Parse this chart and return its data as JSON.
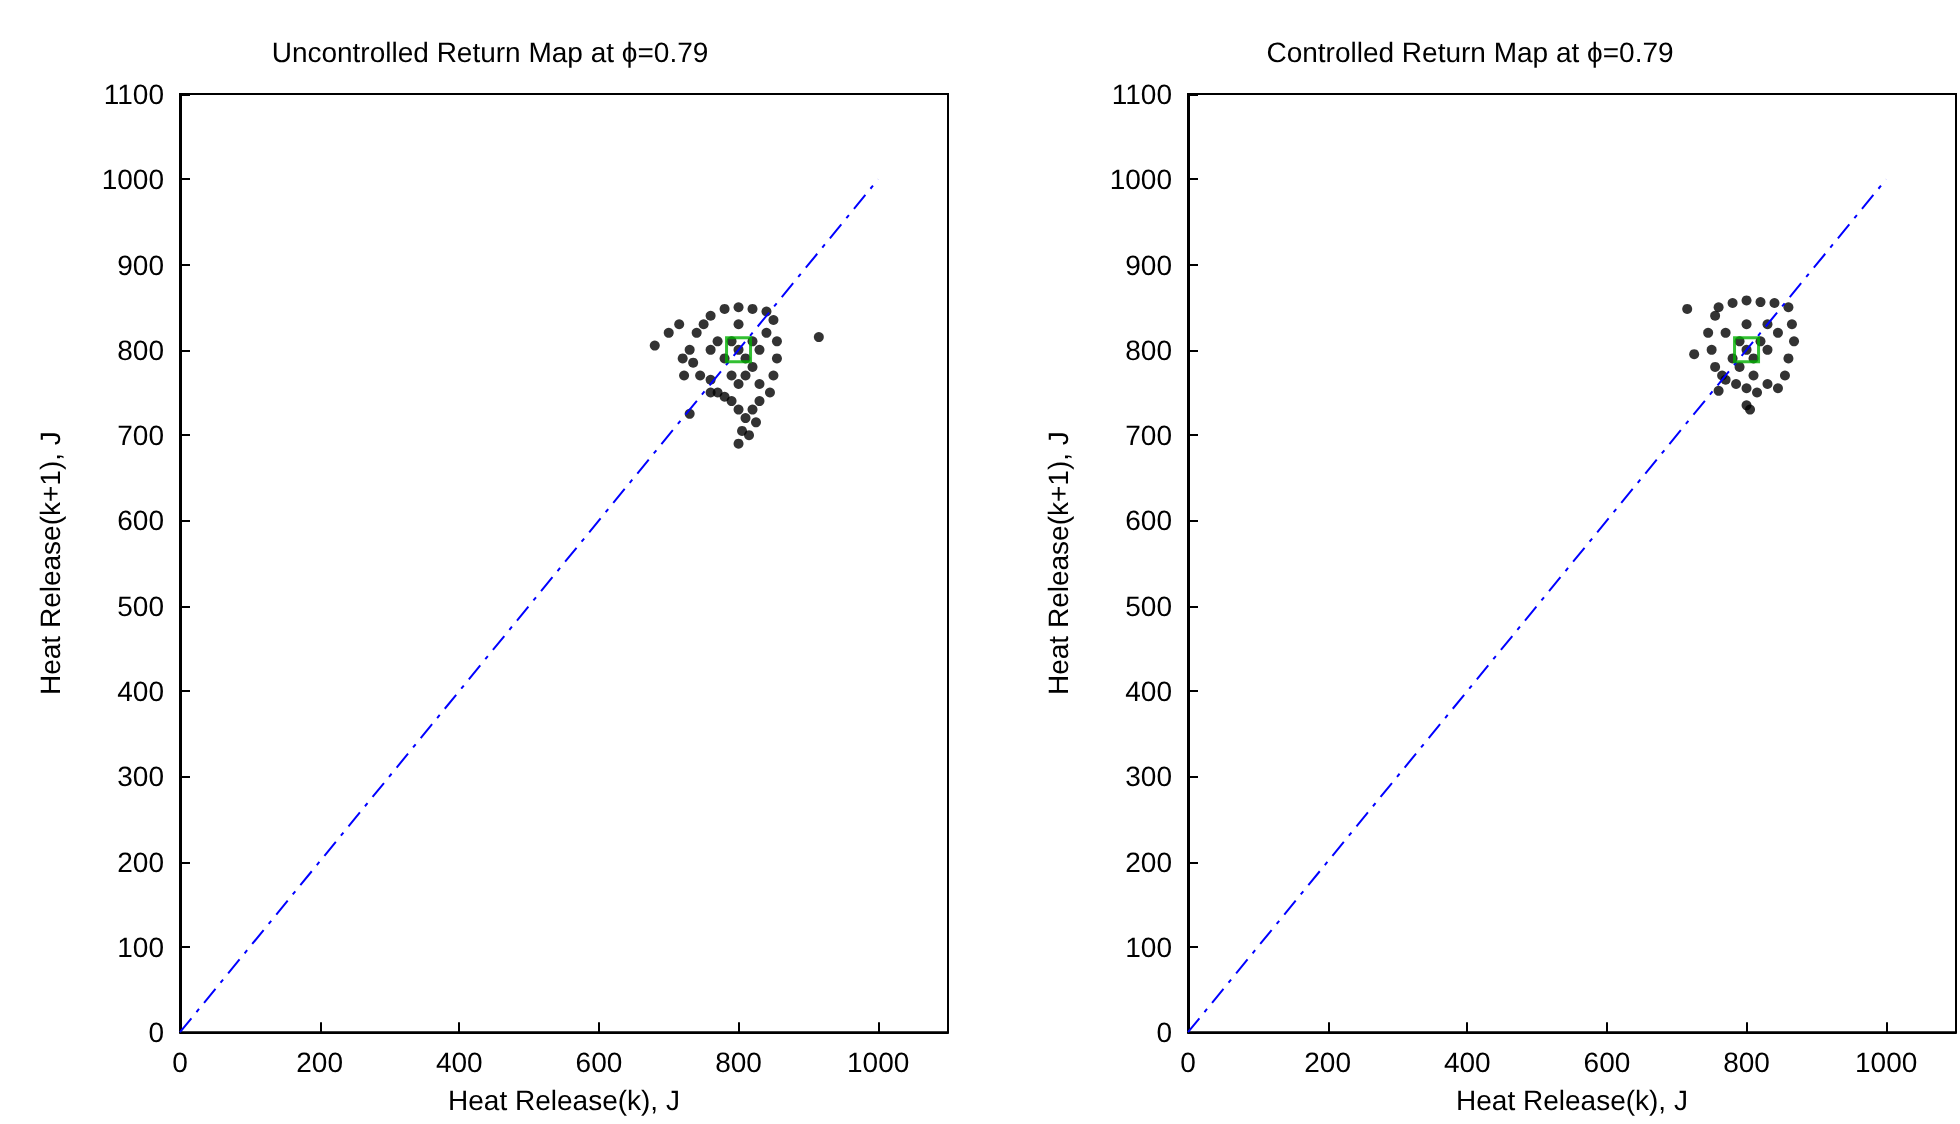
{
  "chart_data": [
    {
      "type": "scatter",
      "title": "Uncontrolled Return Map at ϕ=0.79",
      "xlabel": "Heat Release(k), J",
      "ylabel": "Heat Release(k+1), J",
      "xlim": [
        0,
        1100
      ],
      "ylim": [
        0,
        1100
      ],
      "xticks": [
        0,
        200,
        400,
        600,
        800,
        1000
      ],
      "yticks": [
        0,
        100,
        200,
        300,
        400,
        500,
        600,
        700,
        800,
        900,
        1000,
        1100
      ],
      "grid": false,
      "series": [
        {
          "type": "line",
          "color": "#0000ff",
          "line_style": "dashed",
          "marker": "none",
          "x": [
            0,
            1000
          ],
          "values": [
            0,
            1000
          ]
        },
        {
          "color": "#000000",
          "marker": "circle",
          "x": [
            800,
            790,
            810,
            820,
            780,
            800,
            810,
            830,
            790,
            820,
            770,
            840,
            760,
            800,
            830,
            760,
            780,
            800,
            820,
            840,
            850,
            855,
            855,
            850,
            845,
            830,
            820,
            810,
            800,
            790,
            805,
            815,
            800,
            825,
            750,
            740,
            730,
            735,
            745,
            760,
            770,
            780,
            680,
            700,
            715,
            720,
            722,
            915,
            760,
            730
          ],
          "values": [
            800,
            810,
            790,
            810,
            790,
            830,
            770,
            800,
            770,
            780,
            810,
            820,
            800,
            760,
            760,
            840,
            848,
            850,
            848,
            845,
            835,
            810,
            790,
            770,
            750,
            740,
            730,
            720,
            730,
            740,
            705,
            700,
            690,
            715,
            830,
            820,
            800,
            785,
            770,
            765,
            750,
            745,
            805,
            820,
            830,
            790,
            770,
            815,
            750,
            725
          ]
        },
        {
          "color": "#00b000",
          "marker": "square",
          "x": [
            800
          ],
          "values": [
            800
          ]
        }
      ]
    },
    {
      "type": "scatter",
      "title": "Controlled Return Map at ϕ=0.79",
      "xlabel": "Heat Release(k), J",
      "ylabel": "Heat Release(k+1), J",
      "xlim": [
        0,
        1100
      ],
      "ylim": [
        0,
        1100
      ],
      "xticks": [
        0,
        200,
        400,
        600,
        800,
        1000
      ],
      "yticks": [
        0,
        100,
        200,
        300,
        400,
        500,
        600,
        700,
        800,
        900,
        1000,
        1100
      ],
      "grid": false,
      "series": [
        {
          "type": "line",
          "color": "#0000ff",
          "line_style": "dashed",
          "marker": "none",
          "x": [
            0,
            1000
          ],
          "values": [
            0,
            1000
          ]
        },
        {
          "color": "#000000",
          "marker": "circle",
          "x": [
            800,
            790,
            810,
            820,
            780,
            800,
            810,
            830,
            790,
            830,
            770,
            845,
            760,
            780,
            800,
            820,
            840,
            860,
            865,
            868,
            860,
            855,
            845,
            830,
            815,
            800,
            785,
            770,
            805,
            800,
            755,
            745,
            750,
            755,
            765,
            715,
            725,
            760
          ],
          "values": [
            800,
            810,
            790,
            810,
            790,
            830,
            770,
            800,
            780,
            830,
            820,
            820,
            850,
            855,
            858,
            856,
            855,
            850,
            830,
            810,
            790,
            770,
            755,
            760,
            750,
            755,
            760,
            765,
            730,
            735,
            840,
            820,
            800,
            780,
            770,
            848,
            795,
            752
          ]
        },
        {
          "color": "#00b000",
          "marker": "square",
          "x": [
            800
          ],
          "values": [
            800
          ]
        }
      ]
    }
  ]
}
